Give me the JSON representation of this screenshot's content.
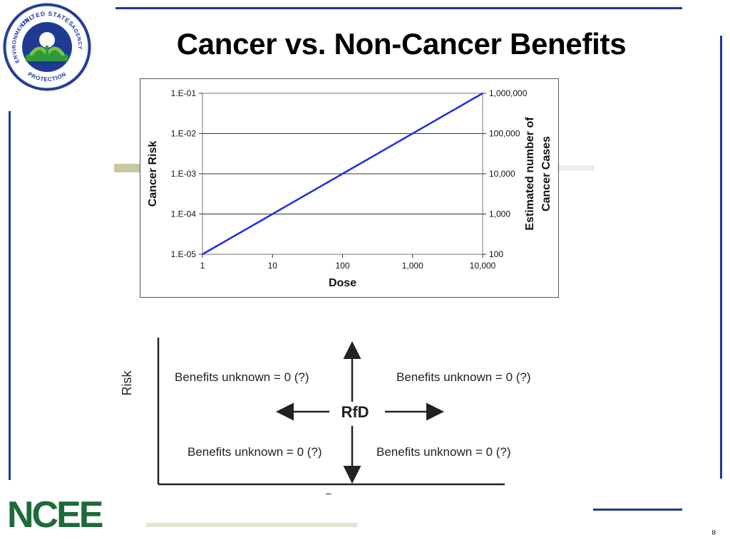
{
  "slide": {
    "title": "Cancer vs. Non-Cancer Benefits",
    "page_number": "8",
    "accent_color": "#1f3a93",
    "accent_color_secondary": "#c8c8a0"
  },
  "seal": {
    "text_top": "UNITED STATES",
    "text_left": "ENVIRONMENTAL",
    "text_bottom": "PROTECTION",
    "text_right": "AGENCY"
  },
  "footer_logo": {
    "text": "NCEE"
  },
  "chart_data": {
    "type": "line",
    "x_scale": "log",
    "y_scale": "log",
    "xlim": [
      1,
      10000
    ],
    "ylim": [
      1e-05,
      0.1
    ],
    "y2lim": [
      100,
      1000000
    ],
    "xlabel": "Dose",
    "ylabel": "Cancer Risk",
    "y2label": [
      "Estimated number of",
      "Cancer Cases"
    ],
    "x_ticks": [
      {
        "value": 1,
        "label": "1"
      },
      {
        "value": 10,
        "label": "10"
      },
      {
        "value": 100,
        "label": "100"
      },
      {
        "value": 1000,
        "label": "1,000"
      },
      {
        "value": 10000,
        "label": "10,000"
      }
    ],
    "y_ticks": [
      {
        "value": 0.1,
        "label": "1.E-01"
      },
      {
        "value": 0.01,
        "label": "1.E-02"
      },
      {
        "value": 0.001,
        "label": "1.E-03"
      },
      {
        "value": 0.0001,
        "label": "1.E-04"
      },
      {
        "value": 1e-05,
        "label": "1.E-05"
      }
    ],
    "y2_ticks": [
      {
        "value": 1000000,
        "label": "1,000,000"
      },
      {
        "value": 100000,
        "label": "100,000"
      },
      {
        "value": 10000,
        "label": "10,000"
      },
      {
        "value": 1000,
        "label": "1,000"
      },
      {
        "value": 100,
        "label": "100"
      }
    ],
    "grid": "horizontal",
    "series": [
      {
        "color": "#1f2de0",
        "x": [
          1,
          10000
        ],
        "y": [
          1e-05,
          0.1
        ]
      }
    ]
  },
  "diagram": {
    "ylabel": "Risk",
    "xlabel": "Dose",
    "center_label": "RfD",
    "quadrants": {
      "top_left": "Benefits unknown = 0 (?)",
      "top_right": "Benefits unknown = 0 (?)",
      "bottom_left": "Benefits unknown = 0 (?)",
      "bottom_right": "Benefits unknown = 0 (?)"
    }
  }
}
